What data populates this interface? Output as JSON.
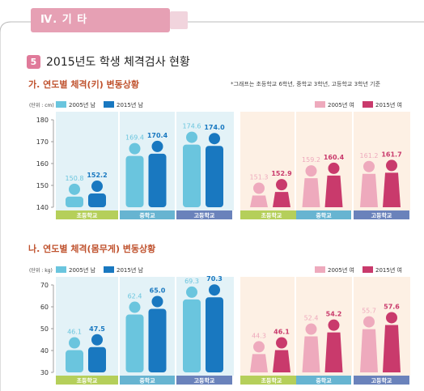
{
  "header": {
    "section_label": "Ⅳ. 기 타",
    "number": "5",
    "title": "2015년도 학생 체격검사 현황"
  },
  "note": "*그래프는 초등학교 6학년, 중학교 3학년, 고등학교 3학년 기준",
  "colors": {
    "boy2005": "#6ac5de",
    "boy2015": "#1978c0",
    "girl2005": "#eeaabd",
    "girl2015": "#c93a6c",
    "boy_panel": "#e3f2f7",
    "girl_panel": "#fdf0e4",
    "elem_bar": "#b5cf5a",
    "mid_bar": "#67b4d1",
    "high_bar": "#6a82bb"
  },
  "chart_data": [
    {
      "type": "bar",
      "title": "가. 연도별 체격(키) 변동상황",
      "unit_label": "(단위 : cm)",
      "ylim": [
        140,
        180
      ],
      "yticks": [
        "180",
        "170",
        "160",
        "150",
        "140"
      ],
      "categories": [
        "초등학교",
        "중학교",
        "고등학교"
      ],
      "boys": {
        "legend": [
          "2005년 남",
          "2015년 남"
        ],
        "series": [
          {
            "name": "2005년 남",
            "values": [
              150.8,
              169.4,
              174.6
            ],
            "labels": [
              "150.8",
              "169.4",
              "174.6"
            ]
          },
          {
            "name": "2015년 남",
            "values": [
              152.2,
              170.4,
              174.0
            ],
            "labels": [
              "152.2",
              "170.4",
              "174.0"
            ]
          }
        ]
      },
      "girls": {
        "legend": [
          "2005년 여",
          "2015년 여"
        ],
        "series": [
          {
            "name": "2005년 여",
            "values": [
              151.3,
              159.2,
              161.2
            ],
            "labels": [
              "151.3",
              "159.2",
              "161.2"
            ]
          },
          {
            "name": "2015년 여",
            "values": [
              152.9,
              160.4,
              161.7
            ],
            "labels": [
              "152.9",
              "160.4",
              "161.7"
            ]
          }
        ]
      }
    },
    {
      "type": "bar",
      "title": "나. 연도별 체격(몸무게) 변동상황",
      "unit_label": "(단위 : kg)",
      "ylim": [
        30,
        70
      ],
      "yticks": [
        "70",
        "60",
        "50",
        "40",
        "30"
      ],
      "categories": [
        "초등학교",
        "중학교",
        "고등학교"
      ],
      "boys": {
        "legend": [
          "2005년 남",
          "2015년 남"
        ],
        "series": [
          {
            "name": "2005년 남",
            "values": [
              46.1,
              62.4,
              69.3
            ],
            "labels": [
              "46.1",
              "62.4",
              "69.3"
            ]
          },
          {
            "name": "2015년 남",
            "values": [
              47.5,
              65.0,
              70.3
            ],
            "labels": [
              "47.5",
              "65.0",
              "70.3"
            ]
          }
        ]
      },
      "girls": {
        "legend": [
          "2005년 여",
          "2015년 여"
        ],
        "series": [
          {
            "name": "2005년 여",
            "values": [
              44.3,
              52.4,
              55.7
            ],
            "labels": [
              "44.3",
              "52.4",
              "55.7"
            ]
          },
          {
            "name": "2015년 여",
            "values": [
              46.1,
              54.2,
              57.6
            ],
            "labels": [
              "46.1",
              "54.2",
              "57.6"
            ]
          }
        ]
      }
    }
  ]
}
